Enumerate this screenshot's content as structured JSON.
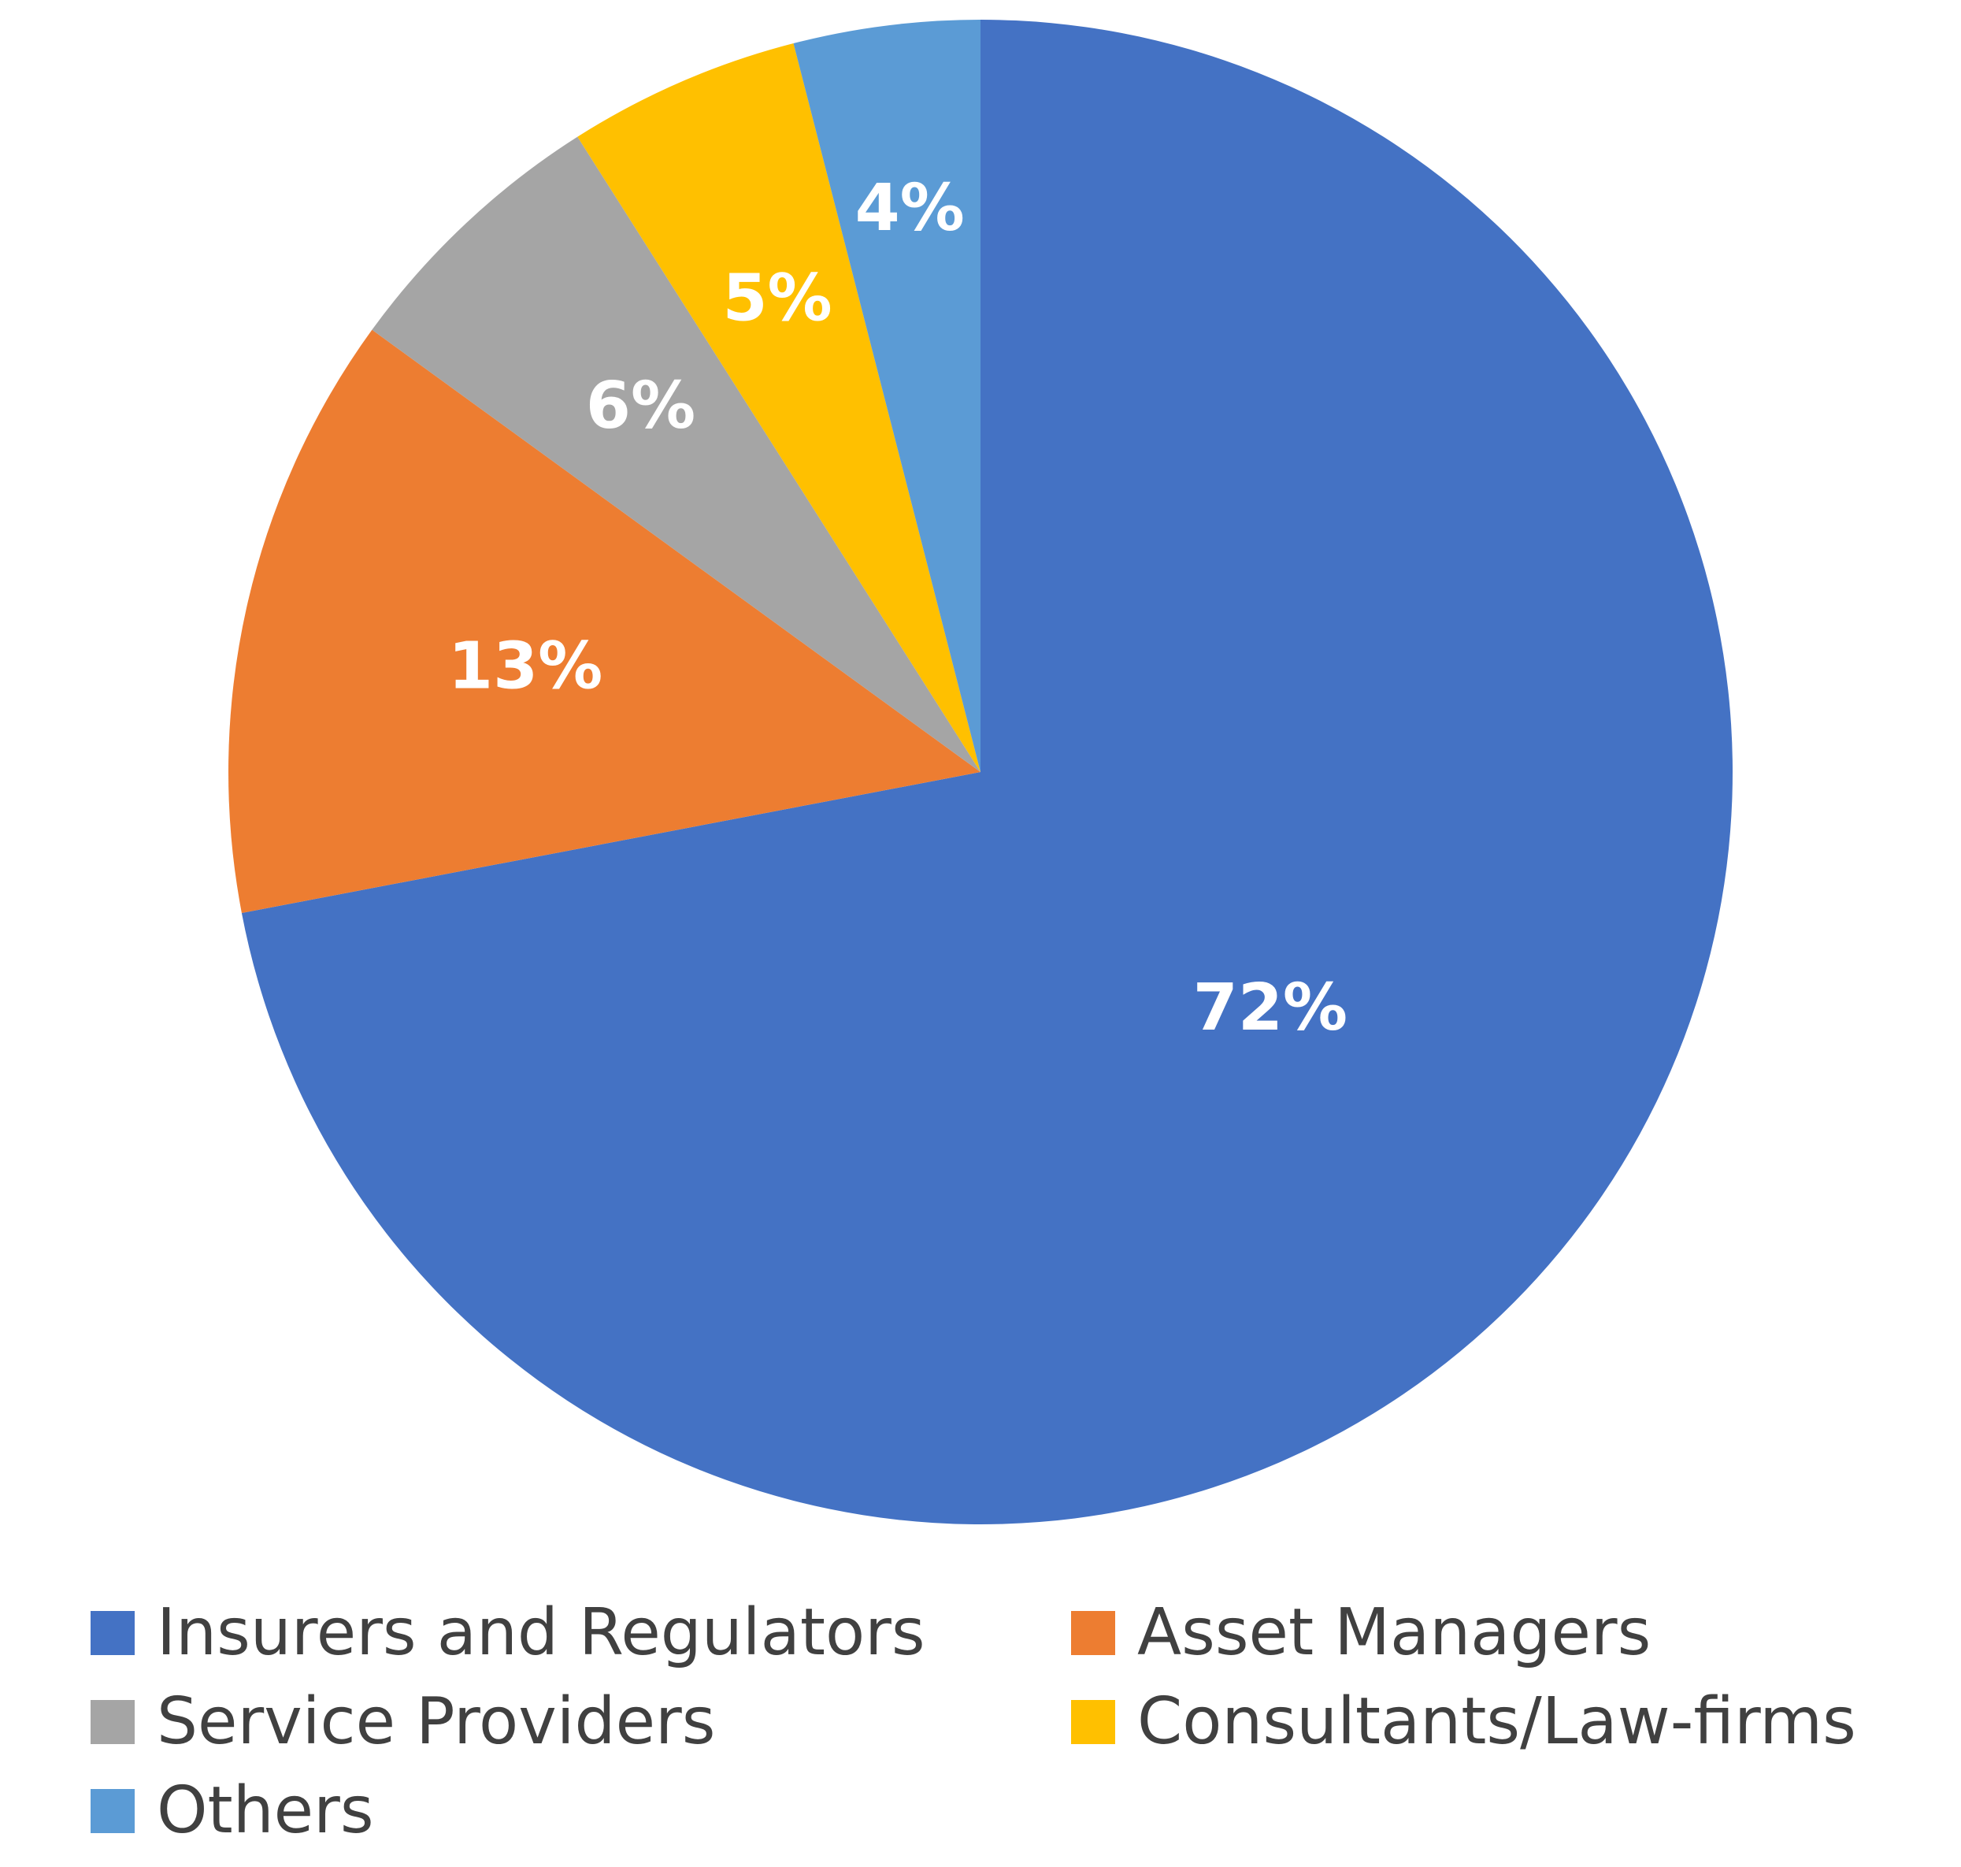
{
  "chart_data": {
    "type": "pie",
    "title": "",
    "start_angle_deg": 0,
    "direction": "clockwise",
    "slices": [
      {
        "name": "Insurers and Regulators",
        "value": 72,
        "label": "72%",
        "color": "#4472C4"
      },
      {
        "name": "Asset Managers",
        "value": 13,
        "label": "13%",
        "color": "#ED7D31"
      },
      {
        "name": "Service Providers",
        "value": 6,
        "label": "6%",
        "color": "#A5A5A5"
      },
      {
        "name": "Consultants/Law-firms",
        "value": 5,
        "label": "5%",
        "color": "#FFC000"
      },
      {
        "name": "Others",
        "value": 4,
        "label": "4%",
        "color": "#5B9BD5"
      }
    ],
    "legend_placement": "bottom"
  },
  "legend": {
    "items": [
      {
        "label": "Insurers and Regulators",
        "color": "#4472C4"
      },
      {
        "label": "Asset Managers",
        "color": "#ED7D31"
      },
      {
        "label": "Service Providers",
        "color": "#A5A5A5"
      },
      {
        "label": "Consultants/Law-firms",
        "color": "#FFC000"
      },
      {
        "label": "Others",
        "color": "#5B9BD5"
      }
    ]
  }
}
